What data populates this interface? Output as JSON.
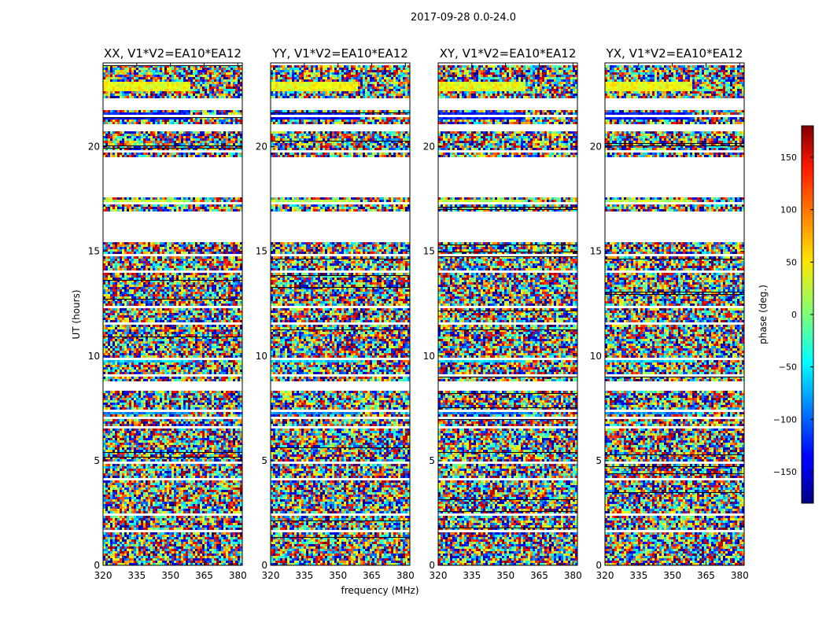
{
  "figure_title": "2017-09-28 0.0-24.0",
  "chart_data": {
    "type": "heatmap",
    "title": "2017-09-28 0.0-24.0",
    "xlabel": "frequency (MHz)",
    "ylabel": "UT (hours)",
    "xlim": [
      320,
      382
    ],
    "ylim": [
      0,
      24
    ],
    "xticks": [
      320,
      335,
      350,
      365,
      380
    ],
    "yticks": [
      0,
      5,
      10,
      15,
      20
    ],
    "colormap": "jet",
    "panels": [
      {
        "title": "XX, V1*V2=EA10*EA12",
        "polarization": "XX"
      },
      {
        "title": "YY, V1*V2=EA10*EA12",
        "polarization": "YY"
      },
      {
        "title": "XY, V1*V2=EA10*EA12",
        "polarization": "XY"
      },
      {
        "title": "YX, V1*V2=EA10*EA12",
        "polarization": "YX"
      }
    ],
    "colorbar": {
      "label": "phase (deg.)",
      "range": [
        -180,
        180
      ],
      "ticks": [
        -150,
        -100,
        -50,
        0,
        50,
        100,
        150
      ]
    },
    "coherent_bands_hours": [
      [
        21.3,
        21.7,
        -130
      ],
      [
        12.3,
        12.5,
        -100
      ],
      [
        9.7,
        9.9,
        -60
      ],
      [
        7.3,
        7.5,
        -90
      ],
      [
        17.3,
        17.5,
        20
      ],
      [
        22.7,
        23.1,
        40
      ]
    ],
    "empty_intervals_hours": [
      [
        17.6,
        19.6
      ],
      [
        15.5,
        17.0
      ],
      [
        21.8,
        22.3
      ],
      [
        20.8,
        21.1
      ],
      [
        8.4,
        8.8
      ],
      [
        7.0,
        7.2
      ]
    ]
  }
}
